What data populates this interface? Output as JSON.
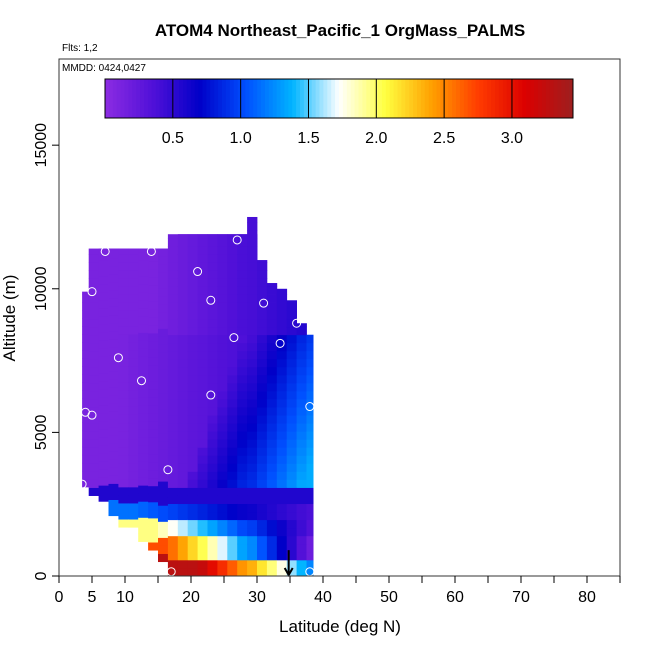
{
  "chart_data": {
    "type": "heatmap",
    "title": "ATOM4 Northeast_Pacific_1 OrgMass_PALMS",
    "flights_label": "Flts: 1,2",
    "dates_label": "MMDD: 0424,0427",
    "xlabel": "Latitude (deg N)",
    "ylabel": "Altitude (m)",
    "xlim": [
      0,
      85
    ],
    "ylim": [
      0,
      18000
    ],
    "x_ticks": [
      0,
      5,
      10,
      20,
      30,
      40,
      50,
      60,
      70,
      80
    ],
    "y_ticks": [
      0,
      5000,
      10000,
      15000
    ],
    "colorbar": {
      "range": [
        0,
        3.45
      ],
      "ticks": [
        0.5,
        1.0,
        1.5,
        2.0,
        2.5,
        3.0
      ],
      "tick_labels": [
        "0.5",
        "1.0",
        "1.5",
        "2.0",
        "2.5",
        "3.0"
      ],
      "colors": [
        "#8a2be2",
        "#5010d8",
        "#0000c8",
        "#0050ff",
        "#00b4ff",
        "#ffffff",
        "#ffff40",
        "#ffa000",
        "#ff3c00",
        "#dc0000",
        "#a01e1e"
      ]
    },
    "columns": [
      {
        "lat": [
          3.5,
          6.5
        ],
        "alt": [
          3100,
          9900
        ]
      },
      {
        "lat": [
          4.5,
          7.5
        ],
        "alt": [
          2800,
          11400
        ]
      },
      {
        "lat": [
          6,
          9
        ],
        "alt": [
          2600,
          11400
        ]
      },
      {
        "lat": [
          7.5,
          10.5
        ],
        "alt": [
          2100,
          11400
        ]
      },
      {
        "lat": [
          9,
          12
        ],
        "alt": [
          1700,
          11400
        ]
      },
      {
        "lat": [
          10.5,
          13.5
        ],
        "alt": [
          1700,
          11400
        ]
      },
      {
        "lat": [
          12,
          15
        ],
        "alt": [
          1200,
          11400
        ]
      },
      {
        "lat": [
          13.5,
          16.5
        ],
        "alt": [
          900,
          11400
        ]
      },
      {
        "lat": [
          15,
          18
        ],
        "alt": [
          500,
          11400
        ]
      },
      {
        "lat": [
          16.5,
          19.5
        ],
        "alt": [
          0,
          11900
        ]
      },
      {
        "lat": [
          18,
          21
        ],
        "alt": [
          0,
          11900
        ]
      },
      {
        "lat": [
          19.5,
          22.5
        ],
        "alt": [
          0,
          11900
        ]
      },
      {
        "lat": [
          21,
          24
        ],
        "alt": [
          0,
          11900
        ]
      },
      {
        "lat": [
          22.5,
          25.5
        ],
        "alt": [
          0,
          11900
        ]
      },
      {
        "lat": [
          24,
          27
        ],
        "alt": [
          0,
          11900
        ]
      },
      {
        "lat": [
          25.5,
          28.5
        ],
        "alt": [
          0,
          11900
        ]
      },
      {
        "lat": [
          27,
          30
        ],
        "alt": [
          0,
          11900
        ]
      },
      {
        "lat": [
          28.5,
          30
        ],
        "alt": [
          0,
          12500
        ]
      },
      {
        "lat": [
          30,
          31.5
        ],
        "alt": [
          0,
          11000
        ]
      },
      {
        "lat": [
          31.5,
          33
        ],
        "alt": [
          0,
          10200
        ]
      },
      {
        "lat": [
          33,
          34.5
        ],
        "alt": [
          0,
          10000
        ]
      },
      {
        "lat": [
          34.5,
          36
        ],
        "alt": [
          0,
          9600
        ]
      },
      {
        "lat": [
          36,
          37.5
        ],
        "alt": [
          0,
          8800
        ]
      },
      {
        "lat": [
          37.5,
          38.5
        ],
        "alt": [
          0,
          8400
        ]
      }
    ],
    "sample_points": [
      {
        "lat": 7,
        "alt": 11300
      },
      {
        "lat": 14,
        "alt": 11300
      },
      {
        "lat": 27,
        "alt": 11700
      },
      {
        "lat": 21,
        "alt": 10600
      },
      {
        "lat": 5,
        "alt": 9900
      },
      {
        "lat": 23,
        "alt": 9600
      },
      {
        "lat": 31,
        "alt": 9500
      },
      {
        "lat": 36,
        "alt": 8800
      },
      {
        "lat": 26.5,
        "alt": 8300
      },
      {
        "lat": 33.5,
        "alt": 8100
      },
      {
        "lat": 9,
        "alt": 7600
      },
      {
        "lat": 12.5,
        "alt": 6800
      },
      {
        "lat": 23,
        "alt": 6300
      },
      {
        "lat": 38,
        "alt": 5900
      },
      {
        "lat": 4,
        "alt": 5700
      },
      {
        "lat": 5,
        "alt": 5600
      },
      {
        "lat": 16.5,
        "alt": 3700
      },
      {
        "lat": 3.5,
        "alt": 3200
      },
      {
        "lat": 17,
        "alt": 150
      },
      {
        "lat": 38,
        "alt": 150
      }
    ],
    "marker_arrow": {
      "lat": 34.8,
      "alt_from": 900,
      "alt_to": 0
    }
  }
}
